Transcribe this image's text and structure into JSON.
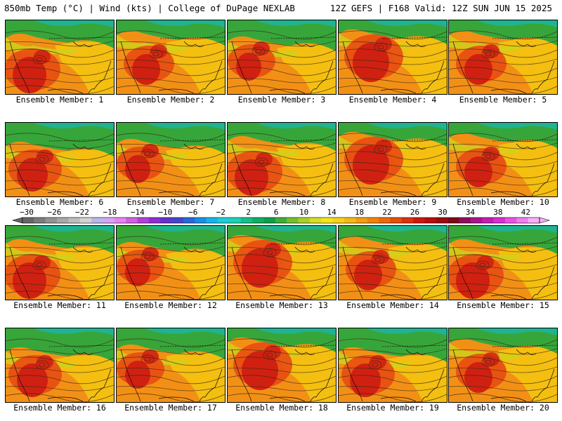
{
  "header": {
    "left": "850mb Temp (°C) | Wind (kts) | College of DuPage NEXLAB",
    "right": "12Z GEFS | F168 Valid: 12Z SUN JUN 15 2025"
  },
  "member_label_prefix": "Ensemble Member: ",
  "members": [
    {
      "id": 1,
      "label": "Ensemble Member: 1",
      "variant": 0
    },
    {
      "id": 2,
      "label": "Ensemble Member: 2",
      "variant": 1
    },
    {
      "id": 3,
      "label": "Ensemble Member: 3",
      "variant": 2
    },
    {
      "id": 4,
      "label": "Ensemble Member: 4",
      "variant": 3
    },
    {
      "id": 5,
      "label": "Ensemble Member: 5",
      "variant": 1
    },
    {
      "id": 6,
      "label": "Ensemble Member: 6",
      "variant": 4
    },
    {
      "id": 7,
      "label": "Ensemble Member: 7",
      "variant": 2
    },
    {
      "id": 8,
      "label": "Ensemble Member: 8",
      "variant": 0
    },
    {
      "id": 9,
      "label": "Ensemble Member: 9",
      "variant": 3
    },
    {
      "id": 10,
      "label": "Ensemble Member: 10",
      "variant": 1
    },
    {
      "id": 11,
      "label": "Ensemble Member: 11",
      "variant": 0
    },
    {
      "id": 12,
      "label": "Ensemble Member: 12",
      "variant": 2
    },
    {
      "id": 13,
      "label": "Ensemble Member: 13",
      "variant": 3
    },
    {
      "id": 14,
      "label": "Ensemble Member: 14",
      "variant": 1
    },
    {
      "id": 15,
      "label": "Ensemble Member: 15",
      "variant": 0
    },
    {
      "id": 16,
      "label": "Ensemble Member: 16",
      "variant": 4
    },
    {
      "id": 17,
      "label": "Ensemble Member: 17",
      "variant": 2
    },
    {
      "id": 18,
      "label": "Ensemble Member: 18",
      "variant": 3
    },
    {
      "id": 19,
      "label": "Ensemble Member: 19",
      "variant": 4
    },
    {
      "id": 20,
      "label": "Ensemble Member: 20",
      "variant": 1
    }
  ],
  "colorbar": {
    "units": "°C",
    "tick_labels": [
      "−30",
      "−26",
      "−22",
      "−18",
      "−14",
      "−10",
      "−6",
      "−2",
      "2",
      "6",
      "10",
      "14",
      "18",
      "22",
      "26",
      "30",
      "34",
      "38",
      "42"
    ],
    "colors": [
      "#666666",
      "#7c7c7c",
      "#929292",
      "#a8a8a8",
      "#bdbdbd",
      "#d2d2d2",
      "#b7b7e8",
      "#d7a4f2",
      "#e883f1",
      "#d35ee0",
      "#b240d6",
      "#8e2ed1",
      "#6333c9",
      "#4446c9",
      "#2769d6",
      "#1a8fe2",
      "#16b3ea",
      "#1ccdd6",
      "#1ad2b2",
      "#13c089",
      "#0fae62",
      "#0f9e45",
      "#3cae38",
      "#74bf30",
      "#a8cf28",
      "#d8dd22",
      "#f4e41c",
      "#f7d11a",
      "#f4b813",
      "#f29f0e",
      "#ef8409",
      "#eb6a09",
      "#e64e0a",
      "#dd300c",
      "#d0170e",
      "#b70d0f",
      "#9b0a11",
      "#7e0813",
      "#8c0f5a",
      "#a8158a",
      "#c21db4",
      "#d72fd4",
      "#e852e6",
      "#f17df0",
      "#f7aef6"
    ]
  },
  "palette": {
    "hot": "#cf1d12",
    "red": "#e84e12",
    "orange": "#f29016",
    "yellow": "#f4c410",
    "yellow_green": "#cdd31c",
    "green": "#37a63a",
    "teal": "#1cb5a0",
    "contour": "#3a2a12",
    "coast": "#0d0d0d"
  }
}
